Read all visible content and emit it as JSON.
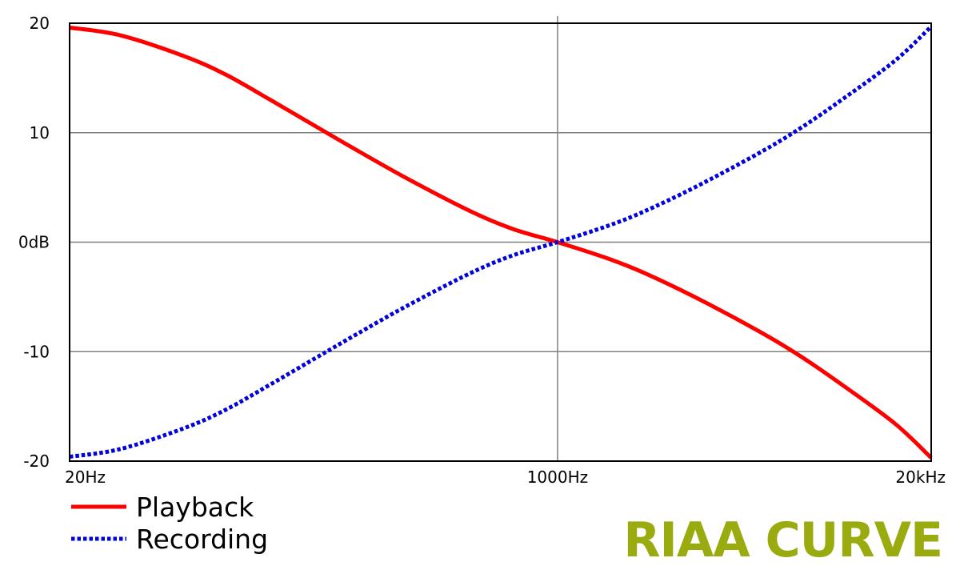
{
  "chart_data": {
    "type": "line",
    "title": "",
    "xlabel": "",
    "ylabel": "",
    "x_scale": "log",
    "xlim_hz": [
      20,
      20000
    ],
    "ylim": [
      -20,
      20
    ],
    "grid": true,
    "legend_placement": "bottom-left",
    "y_ticks": [
      {
        "value": 20,
        "label": "20"
      },
      {
        "value": 10,
        "label": "10"
      },
      {
        "value": 0,
        "label": "0dB"
      },
      {
        "value": -10,
        "label": "-10"
      },
      {
        "value": -20,
        "label": "-20"
      }
    ],
    "x_ticks": [
      {
        "value": 20,
        "label": "20Hz"
      },
      {
        "value": 1000,
        "label": "1000Hz"
      },
      {
        "value": 20000,
        "label": "20kHz"
      }
    ],
    "series": [
      {
        "name": "Playback",
        "color": "#ff0000",
        "style": "solid",
        "x": [
          20,
          30,
          50,
          70,
          100,
          150,
          200,
          300,
          500,
          700,
          1000,
          1500,
          2000,
          3000,
          5000,
          7000,
          10000,
          15000,
          20000
        ],
        "y": [
          19.6,
          18.9,
          17.0,
          15.3,
          13.0,
          10.3,
          8.4,
          5.8,
          2.8,
          1.2,
          0.0,
          -1.5,
          -2.8,
          -5.0,
          -8.1,
          -10.4,
          -13.2,
          -16.6,
          -19.7
        ]
      },
      {
        "name": "Recording",
        "color": "#0000dd",
        "style": "dotted",
        "x": [
          20,
          30,
          50,
          70,
          100,
          150,
          200,
          300,
          500,
          700,
          1000,
          1500,
          2000,
          3000,
          5000,
          7000,
          10000,
          15000,
          20000
        ],
        "y": [
          -19.6,
          -18.9,
          -17.0,
          -15.3,
          -13.0,
          -10.3,
          -8.4,
          -5.8,
          -2.8,
          -1.2,
          0.0,
          1.5,
          2.8,
          5.0,
          8.1,
          10.4,
          13.2,
          16.6,
          19.7
        ]
      }
    ]
  },
  "caption": "RIAA CURVE"
}
